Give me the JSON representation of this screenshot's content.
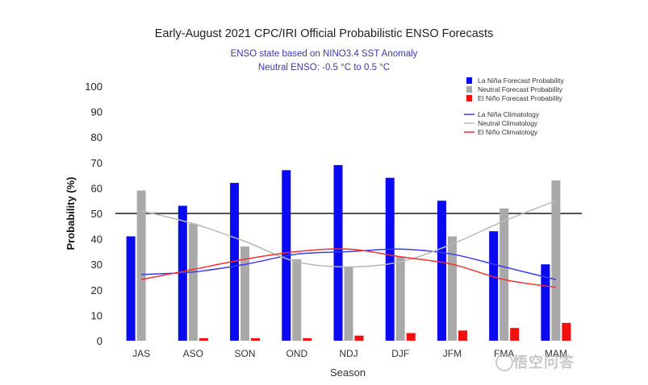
{
  "chart_data": {
    "type": "bar",
    "title": "Early-August 2021 CPC/IRI Official Probabilistic ENSO Forecasts",
    "subtitle_lines": [
      "ENSO state based on NINO3.4 SST Anomaly",
      "Neutral ENSO: -0.5 °C to 0.5 °C"
    ],
    "xlabel": "Season",
    "ylabel": "Probability (%)",
    "ylim": [
      0,
      100
    ],
    "yticks": [
      "0",
      "10",
      "20",
      "30",
      "40",
      "50",
      "60",
      "70",
      "80",
      "90",
      "100"
    ],
    "reference_line": 50,
    "categories": [
      "JAS",
      "ASO",
      "SON",
      "OND",
      "NDJ",
      "DJF",
      "JFM",
      "FMA",
      "MAM"
    ],
    "series": [
      {
        "name": "La Niña Forecast Probability",
        "kind": "bar",
        "color": "#0a0af0",
        "values": [
          41,
          53,
          62,
          67,
          69,
          64,
          55,
          43,
          30
        ]
      },
      {
        "name": "Neutral Forecast Probability",
        "kind": "bar",
        "color": "#a9a9a9",
        "values": [
          59,
          46,
          37,
          32,
          29,
          33,
          41,
          52,
          63
        ]
      },
      {
        "name": "El Niño Forecast Probability",
        "kind": "bar",
        "color": "#f01010",
        "values": [
          0,
          1,
          1,
          1,
          2,
          3,
          4,
          5,
          7
        ]
      }
    ],
    "climatology": [
      {
        "name": "La Niña Climatology",
        "color": "#3a3af0",
        "values": [
          26,
          27,
          30,
          34,
          35,
          36,
          34,
          29,
          24
        ]
      },
      {
        "name": "Neutral Climatology",
        "color": "#b8b8b8",
        "values": [
          51,
          46,
          39,
          31,
          29,
          31,
          38,
          47,
          55
        ]
      },
      {
        "name": "El Niño Climatology",
        "color": "#f03030",
        "values": [
          24,
          28,
          32,
          35,
          36,
          33,
          30,
          24,
          21
        ]
      }
    ],
    "legend_position": "top-right"
  },
  "watermark": "悟空问答"
}
